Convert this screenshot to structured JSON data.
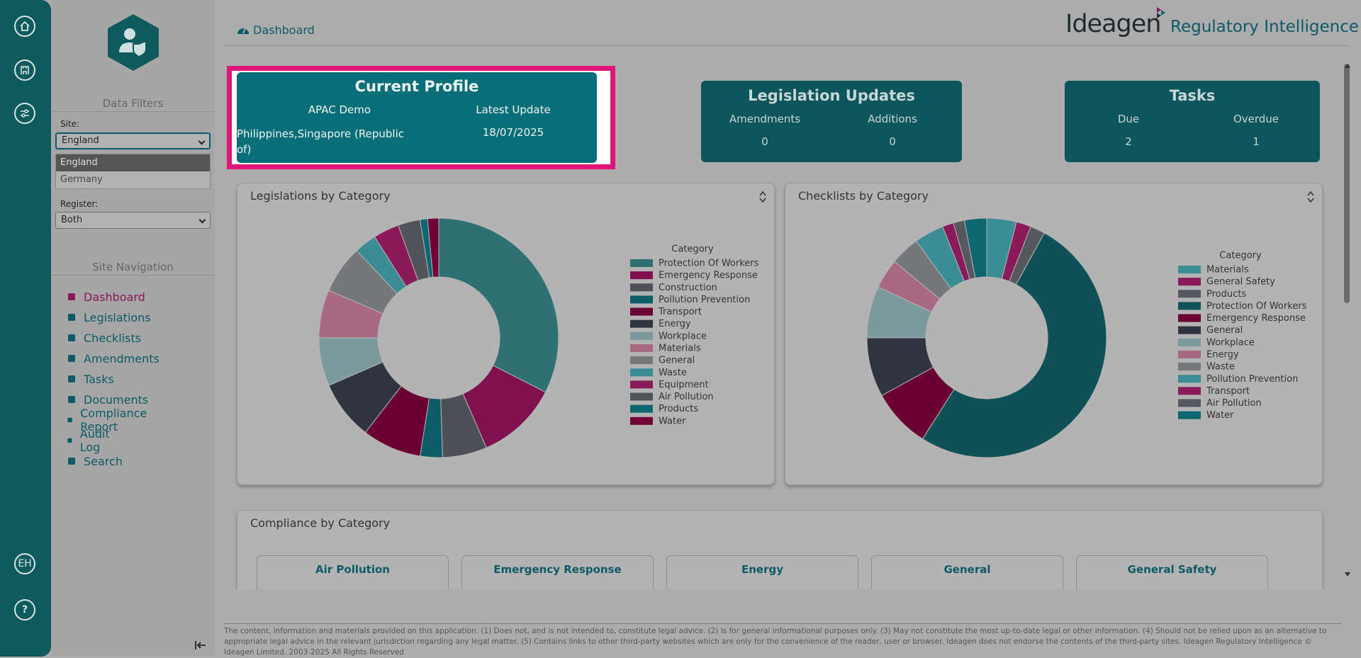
{
  "rail": {
    "user_initials": "EH",
    "help": "?"
  },
  "filters": {
    "title": "Data Filters",
    "site_label": "Site:",
    "site_selected": "England",
    "site_options": [
      "England",
      "Germany"
    ],
    "register_label": "Register:",
    "register_selected": "Both"
  },
  "navigation": {
    "title": "Site Navigation",
    "items": [
      "Dashboard",
      "Legislations",
      "Checklists",
      "Amendments",
      "Tasks",
      "Documents",
      "Compliance Report",
      "Audit Log",
      "Search"
    ]
  },
  "header": {
    "breadcrumb": "Dashboard",
    "logo": "Ideagen",
    "product": "Regulatory Intelligence"
  },
  "profile": {
    "title": "Current Profile",
    "name": "APAC Demo",
    "update_label": "Latest Update",
    "sites": "Philippines,Singapore (Republic of)",
    "update_date": "18/07/2025"
  },
  "legislation_updates": {
    "title": "Legislation Updates",
    "labels": [
      "Amendments",
      "Additions"
    ],
    "values": [
      0,
      0
    ]
  },
  "tasks": {
    "title": "Tasks",
    "labels": [
      "Due",
      "Overdue"
    ],
    "values": [
      2,
      1
    ]
  },
  "chart_data": [
    {
      "type": "donut",
      "title": "Legislations by Category",
      "legend_title": "Category",
      "categories": [
        "Protection Of Workers",
        "Emergency Response",
        "Construction",
        "Pollution Prevention",
        "Transport",
        "Energy",
        "Workplace",
        "Materials",
        "General",
        "Waste",
        "Equipment",
        "Air Pollution",
        "Products",
        "Water"
      ],
      "values": [
        32.5,
        11,
        6,
        3,
        8,
        8,
        6.5,
        6.5,
        6.5,
        3,
        3.5,
        3,
        1,
        1.5
      ],
      "colors": [
        "#2f7073",
        "#80114f",
        "#4d5056",
        "#0b5c66",
        "#6a0032",
        "#2e3440",
        "#7c9a9d",
        "#a86a82",
        "#75777b",
        "#3a8d94",
        "#8a1a5a",
        "#505459",
        "#0d6670",
        "#700035"
      ]
    },
    {
      "type": "donut",
      "title": "Checklists by Category",
      "legend_title": "Category",
      "categories": [
        "Materials",
        "General Safety",
        "Products",
        "Protection Of Workers",
        "Emergency Response",
        "General",
        "Workplace",
        "Energy",
        "Waste",
        "Pollution Prevention",
        "Transport",
        "Air Pollution",
        "Water"
      ],
      "values": [
        4,
        2,
        2,
        51,
        8,
        8,
        7,
        4,
        4,
        4,
        1.5,
        1.5,
        3
      ],
      "colors": [
        "#3a8d94",
        "#8a1a5a",
        "#55585e",
        "#0e5258",
        "#6a0032",
        "#2e3440",
        "#7c9a9d",
        "#a86a82",
        "#75777b",
        "#3a8d94",
        "#8a1a5a",
        "#55585e",
        "#0e6670"
      ]
    }
  ],
  "compliance": {
    "title": "Compliance by Category",
    "cards": [
      "Air Pollution",
      "Emergency Response",
      "Energy",
      "General",
      "General Safety"
    ]
  },
  "footer": {
    "disclaimer": "The content, information and materials provided on this application. (1) Does not, and is not intended to, constitute legal advice. (2) Is for general informational purposes only. (3) May not constitute the most up-to-date legal or other information. (4) Should not be relied upon as an alternative to appropriate legal advice in the relevant jurisdiction regarding any legal matter. (5) Contains links to other third-party websites which are only for the convenience of the reader, user or browser. Ideagen does not endorse the contents of the third-party sites. Ideagen Regulatory Intelligence © Ideagen Limited. 2003-2025 All Rights Reserved"
  }
}
